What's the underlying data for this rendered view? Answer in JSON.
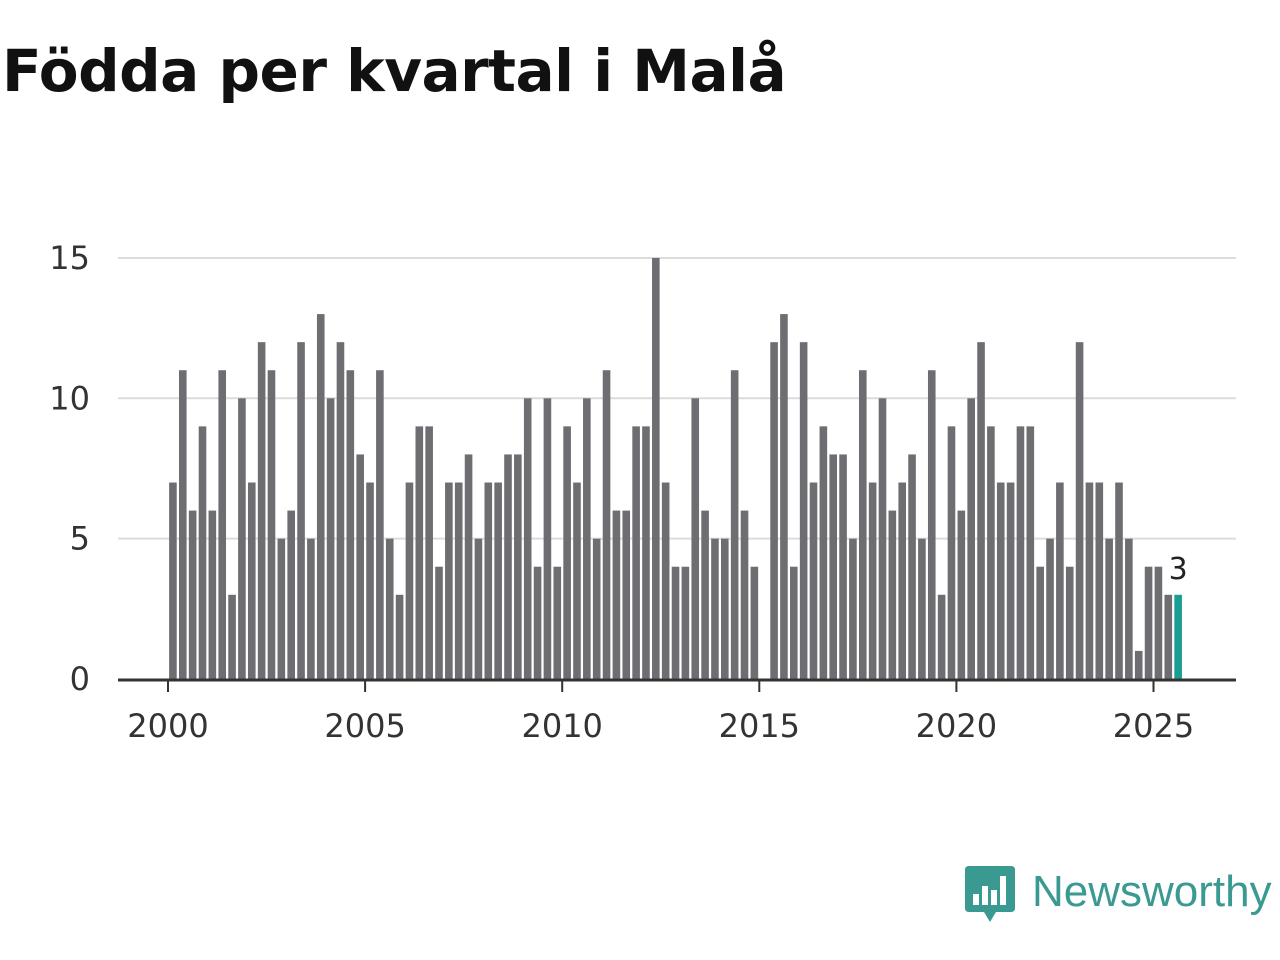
{
  "title": "Födda per kvartal i Malå",
  "brand": {
    "name": "Newsworthy",
    "icon": "newsworthy-logo-icon",
    "color": "#3a9a92"
  },
  "chart_data": {
    "type": "bar",
    "title": "Födda per kvartal i Malå",
    "xlabel": "",
    "ylabel": "",
    "unit": "births per quarter",
    "start": {
      "year": 2000,
      "quarter": 1
    },
    "values": [
      7,
      11,
      6,
      9,
      6,
      11,
      3,
      10,
      7,
      12,
      11,
      5,
      6,
      12,
      5,
      13,
      10,
      12,
      11,
      8,
      7,
      11,
      5,
      3,
      7,
      9,
      9,
      4,
      7,
      7,
      8,
      5,
      7,
      7,
      8,
      8,
      10,
      4,
      10,
      4,
      9,
      7,
      10,
      5,
      11,
      6,
      6,
      9,
      9,
      15,
      7,
      4,
      4,
      10,
      6,
      5,
      5,
      11,
      6,
      4,
      0,
      12,
      13,
      4,
      12,
      7,
      9,
      8,
      8,
      5,
      11,
      7,
      10,
      6,
      7,
      8,
      5,
      11,
      3,
      9,
      6,
      10,
      12,
      9,
      7,
      7,
      9,
      9,
      4,
      5,
      7,
      4,
      12,
      7,
      7,
      5,
      7,
      5,
      1,
      4,
      4,
      3,
      3
    ],
    "ylim": [
      0,
      15
    ],
    "yticks": [
      0,
      5,
      10,
      15
    ],
    "xticks": [
      "2000",
      "2005",
      "2010",
      "2015",
      "2020",
      "2025"
    ],
    "xtick_years": [
      2000,
      2005,
      2010,
      2015,
      2020,
      2025
    ],
    "highlight": {
      "index": 102,
      "label": "3",
      "color": "#1a9e94"
    },
    "bar_color": "#6e6d72",
    "grid": true
  }
}
